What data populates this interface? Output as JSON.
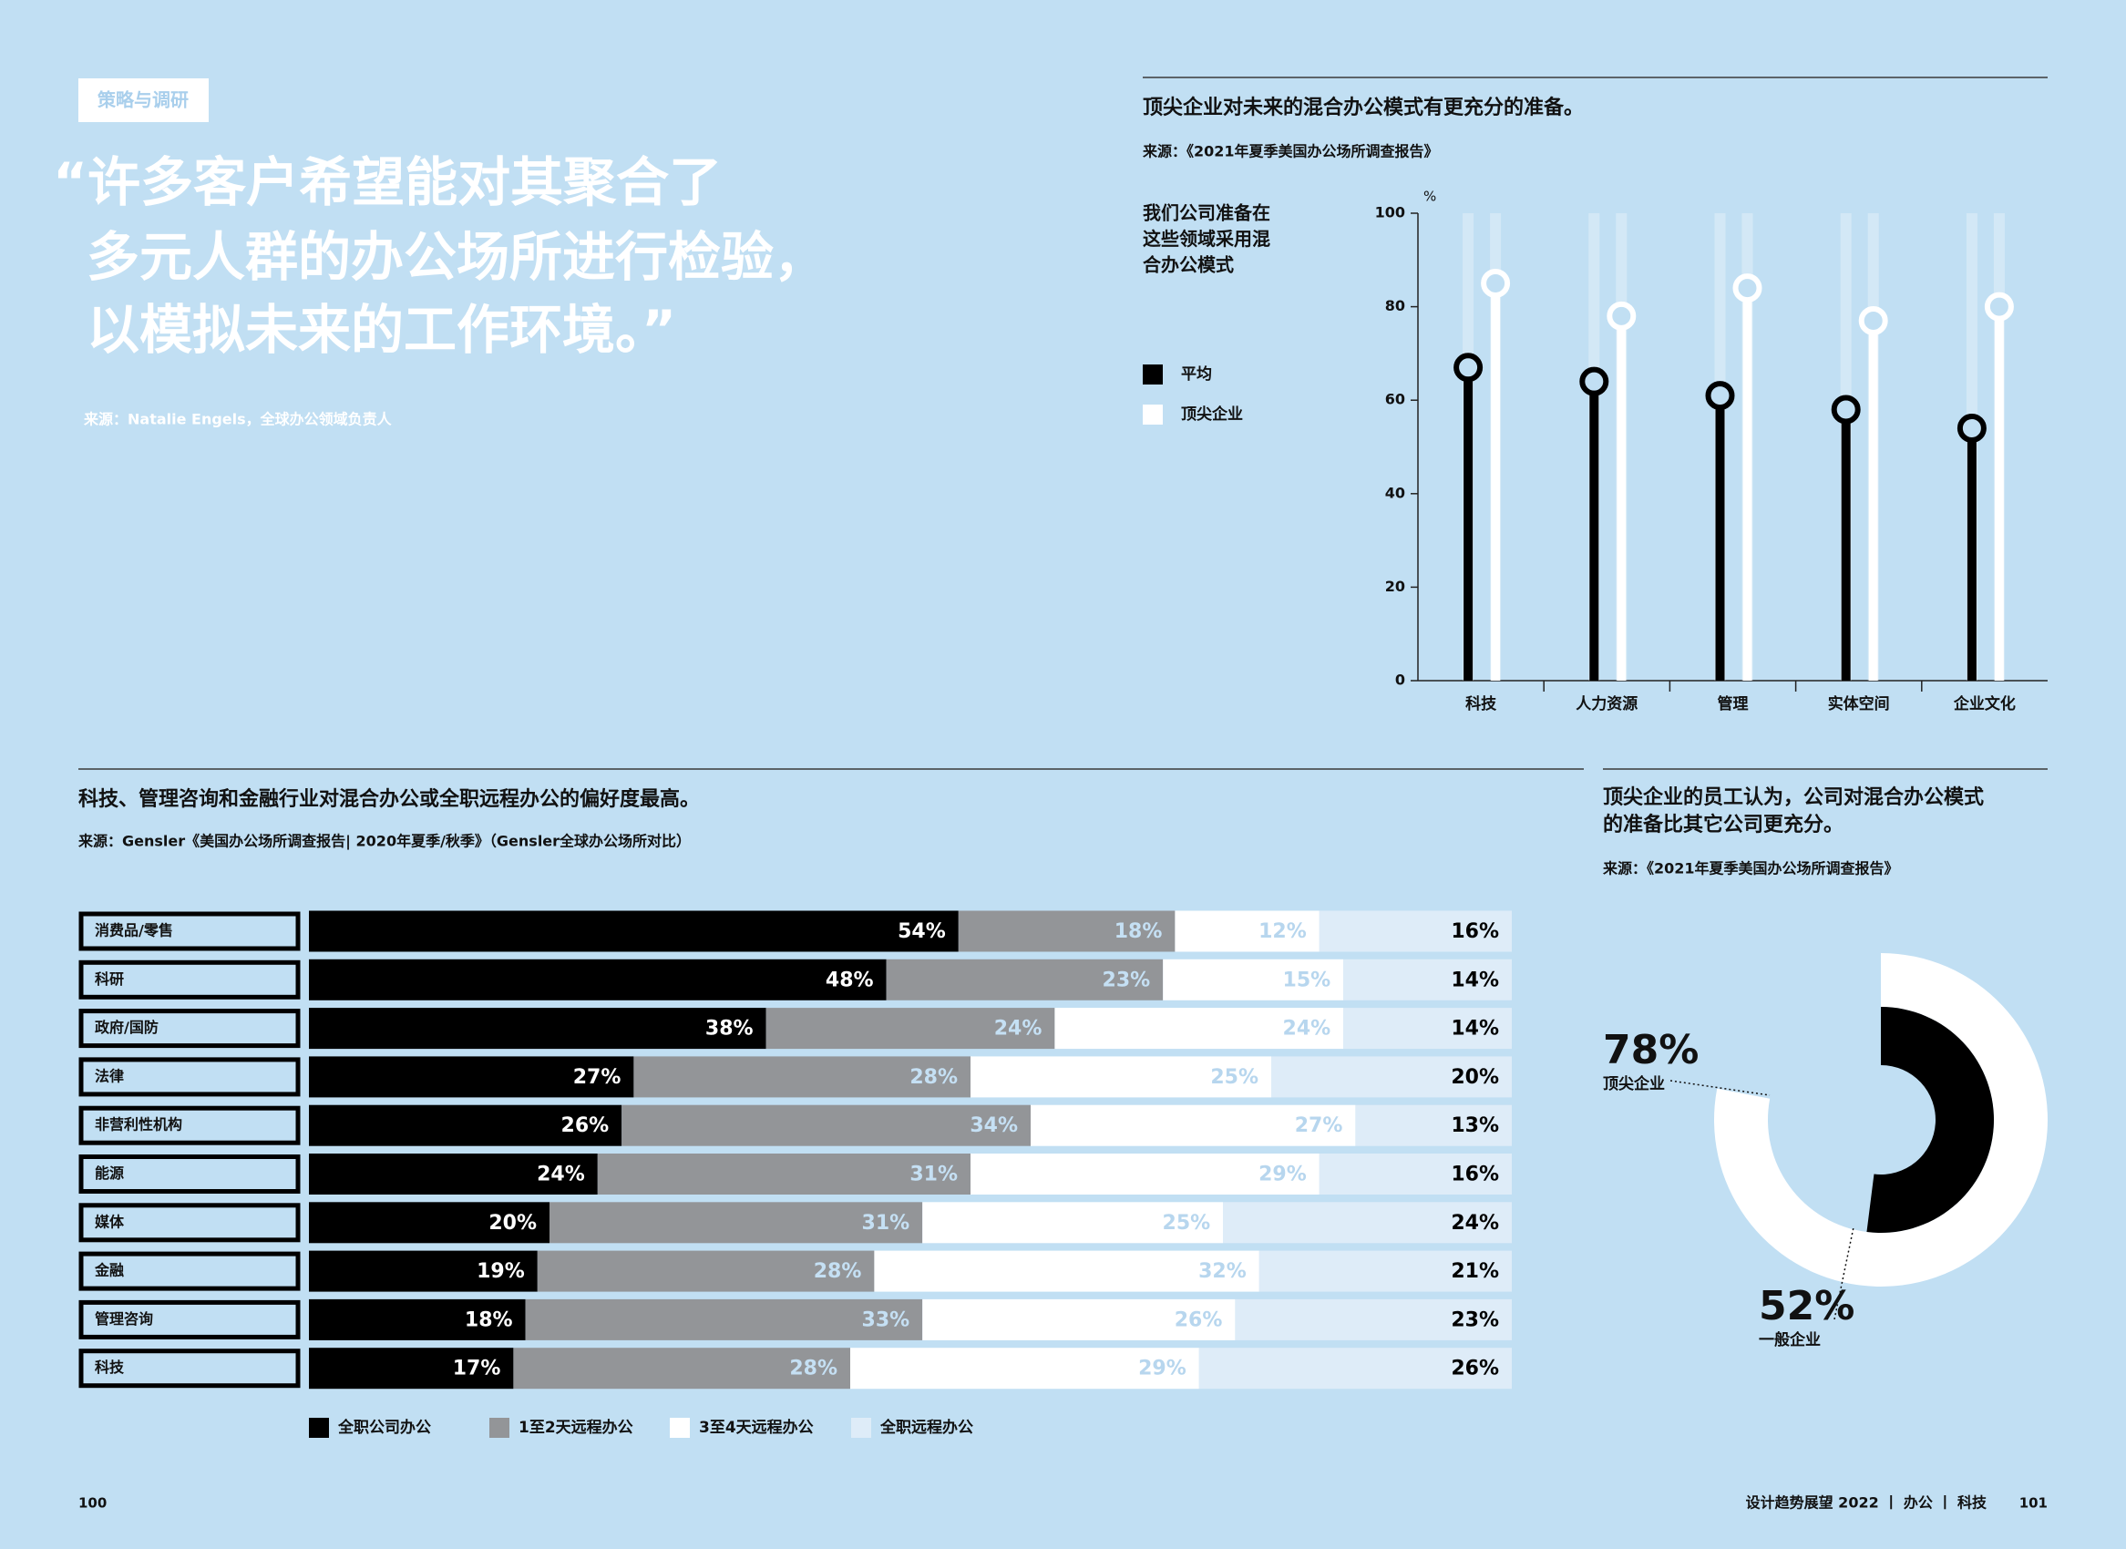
{
  "header": {
    "tag": "策略与调研",
    "quote": [
      "“许多客户希望能对其聚合了",
      "多元人群的办公场所进行检验，",
      "以模拟未来的工作环境。”"
    ],
    "quote_source": "来源：Natalie Engels，全球办公领域负责人"
  },
  "chart_data": [
    {
      "type": "lollipop",
      "title": "顶尖企业对未来的混合办公模式有更充分的准备。",
      "source": "来源：《2021年夏季美国办公场所调查报告》",
      "subtitle": [
        "我们公司准备在",
        "这些领域采用混",
        "合办公模式"
      ],
      "y_unit": "%",
      "categories": [
        "科技",
        "人力资源",
        "管理",
        "实体空间",
        "企业文化"
      ],
      "series": [
        {
          "name": "平均",
          "color": "#000000",
          "values": [
            67,
            64,
            61,
            58,
            54
          ]
        },
        {
          "name": "顶尖企业",
          "color": "#ffffff",
          "values": [
            85,
            78,
            84,
            77,
            80
          ]
        }
      ],
      "ylim": [
        0,
        100
      ],
      "yticks": [
        0,
        20,
        40,
        60,
        80,
        100
      ]
    },
    {
      "type": "stacked_bar",
      "orientation": "horizontal",
      "title": "科技、管理咨询和金融行业对混合办公或全职远程办公的偏好度最高。",
      "source": "来源：Gensler《美国办公场所调查报告| 2020年夏季/秋季》（Gensler全球办公场所对比）",
      "categories": [
        "消费品/零售",
        "科研",
        "政府/国防",
        "法律",
        "非营利性机构",
        "能源",
        "媒体",
        "金融",
        "管理咨询",
        "科技"
      ],
      "series": [
        {
          "name": "全职公司办公",
          "color": "#000000",
          "label_color": "#ffffff",
          "values": [
            54,
            48,
            38,
            27,
            26,
            24,
            20,
            19,
            18,
            17
          ],
          "value_labels": [
            "54%",
            "48%",
            "38%",
            "27%",
            "26%",
            "24%",
            "20%",
            "19%",
            "18%",
            "17%"
          ]
        },
        {
          "name": "1至2天远程办公",
          "color": "#939598",
          "label_color": "#c5e0f4",
          "values": [
            18,
            23,
            24,
            28,
            34,
            31,
            31,
            28,
            33,
            28
          ],
          "value_labels": [
            "18%",
            "23%",
            "24%",
            "28%",
            "34%",
            "31%",
            "31%",
            "28%",
            "33%",
            "28%"
          ]
        },
        {
          "name": "3至4天远程办公",
          "color": "#ffffff",
          "label_color": "#b7d6ee",
          "values": [
            12,
            15,
            24,
            25,
            27,
            29,
            25,
            32,
            26,
            29
          ],
          "value_labels": [
            "12%",
            "15%",
            "24%",
            "25%",
            "27%",
            "29%",
            "25%",
            "32%",
            "26%",
            "29%"
          ]
        },
        {
          "name": "全职远程办公",
          "color": "#deecf8",
          "label_color": "#000000",
          "values": [
            16,
            14,
            14,
            20,
            13,
            16,
            24,
            21,
            23,
            26
          ],
          "value_labels": [
            "16%",
            "14%",
            "14%",
            "20%",
            "13%",
            "16%",
            "24%",
            "21%",
            "23%",
            "26%"
          ]
        }
      ]
    },
    {
      "type": "donut",
      "title": [
        "顶尖企业的员工认为，公司对混合办公模式",
        "的准备比其它公司更充分。"
      ],
      "source": "来源：《2021年夏季美国办公场所调查报告》",
      "categories": [
        "顶尖企业",
        "一般企业"
      ],
      "values": [
        78,
        52
      ],
      "value_labels": [
        "78%",
        "52%"
      ],
      "colors": [
        "#ffffff",
        "#000000"
      ]
    }
  ],
  "footer": {
    "left_page": "100",
    "running_head": "设计趋势展望 2022 丨 办公 丨 科技",
    "right_page": "101"
  }
}
